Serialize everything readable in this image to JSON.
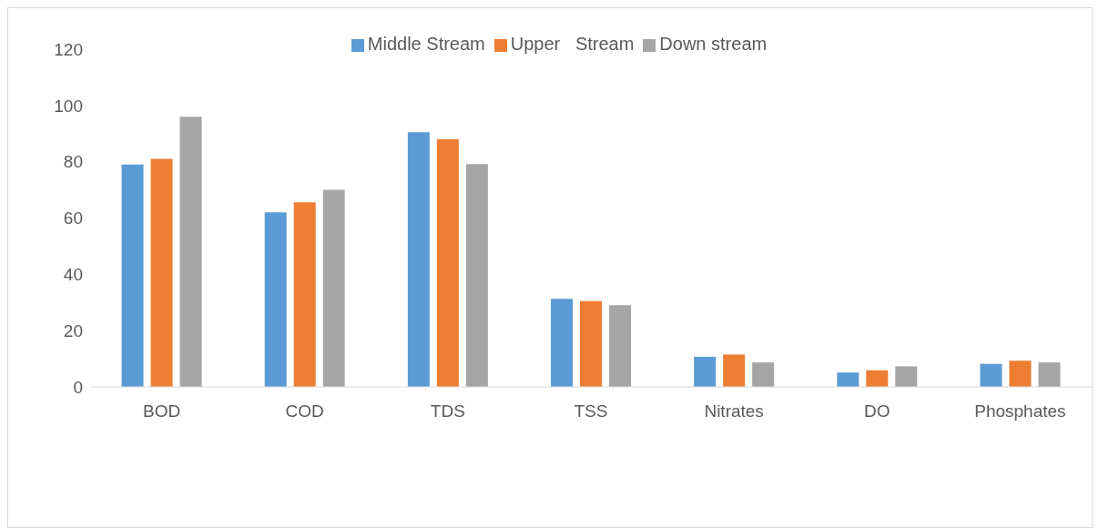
{
  "chart_data": {
    "type": "bar",
    "categories": [
      "BOD",
      "COD",
      "TDS",
      "TSS",
      "Nitrates",
      "DO",
      "Phosphates"
    ],
    "series": [
      {
        "name": "Middle Stream",
        "color": "#5b9bd5",
        "values": [
          79,
          62,
          90.5,
          31.3,
          10.7,
          5.1,
          8.2
        ]
      },
      {
        "name": "Upper   Stream",
        "color": "#ed7d31",
        "values": [
          81,
          65.6,
          88,
          30.5,
          11.5,
          5.9,
          9.3
        ]
      },
      {
        "name": "Down stream",
        "color": "#a5a5a5",
        "values": [
          96,
          70,
          79.2,
          29,
          8.7,
          7.3,
          8.7
        ]
      }
    ],
    "ylim": [
      0,
      120
    ],
    "yticks": [
      0,
      20,
      40,
      60,
      80,
      100,
      120
    ],
    "grid": false,
    "legend": "top"
  }
}
